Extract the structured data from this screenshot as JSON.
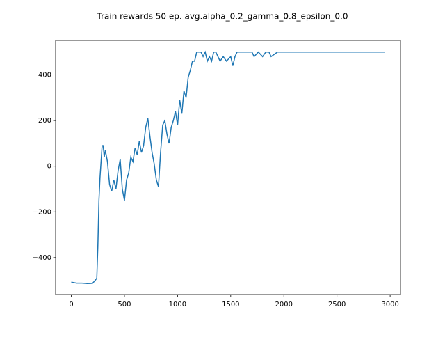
{
  "chart_data": {
    "type": "line",
    "title": "Train rewards 50 ep. avg.alpha_0.2_gamma_0.8_epsilon_0.0",
    "x": [
      0,
      50,
      100,
      150,
      200,
      225,
      240,
      250,
      260,
      270,
      280,
      290,
      300,
      310,
      320,
      340,
      360,
      380,
      400,
      420,
      440,
      460,
      480,
      500,
      520,
      540,
      560,
      580,
      600,
      620,
      640,
      660,
      680,
      700,
      720,
      740,
      760,
      780,
      800,
      820,
      840,
      860,
      880,
      900,
      920,
      940,
      960,
      980,
      1000,
      1020,
      1040,
      1060,
      1080,
      1100,
      1120,
      1140,
      1160,
      1180,
      1220,
      1240,
      1260,
      1280,
      1300,
      1320,
      1340,
      1360,
      1380,
      1400,
      1430,
      1460,
      1500,
      1520,
      1540,
      1560,
      1700,
      1720,
      1760,
      1800,
      1830,
      1860,
      1880,
      1940,
      2950
    ],
    "series": [
      {
        "color": "#1f77b4",
        "values": [
          -508,
          -512,
          -512,
          -514,
          -513,
          -500,
          -490,
          -350,
          -150,
          -50,
          20,
          90,
          90,
          40,
          70,
          20,
          -80,
          -110,
          -60,
          -100,
          -20,
          30,
          -100,
          -150,
          -60,
          -30,
          40,
          20,
          80,
          50,
          110,
          60,
          90,
          170,
          210,
          130,
          60,
          10,
          -60,
          -90,
          60,
          180,
          200,
          140,
          100,
          170,
          200,
          240,
          180,
          290,
          230,
          330,
          300,
          390,
          420,
          460,
          460,
          500,
          500,
          480,
          500,
          460,
          480,
          460,
          500,
          500,
          480,
          460,
          480,
          460,
          480,
          440,
          480,
          500,
          500,
          480,
          500,
          480,
          500,
          500,
          480,
          500,
          500
        ]
      }
    ],
    "xlim": [
      -147.5,
      3097.5
    ],
    "ylim": [
      -562,
      551
    ],
    "xticks": [
      0,
      500,
      1000,
      1500,
      2000,
      2500,
      3000
    ],
    "yticks": [
      {
        "value": -400,
        "label": "−400"
      },
      {
        "value": -200,
        "label": "−200"
      },
      0,
      200,
      400
    ]
  }
}
